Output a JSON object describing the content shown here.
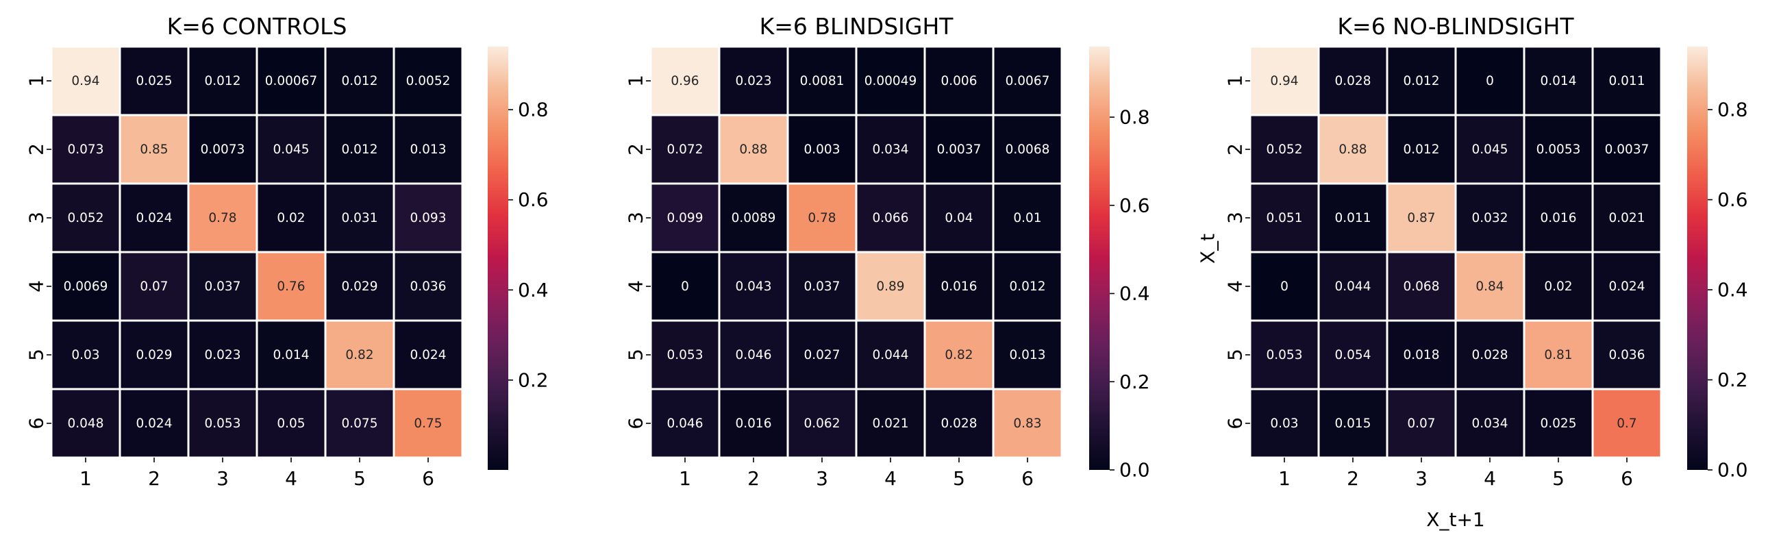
{
  "chart_data": [
    {
      "type": "heatmap",
      "title": "K=6 CONTROLS",
      "x_tick_labels": [
        "1",
        "2",
        "3",
        "4",
        "5",
        "6"
      ],
      "y_tick_labels": [
        "1",
        "2",
        "3",
        "4",
        "5",
        "6"
      ],
      "xlabel": "",
      "ylabel": "",
      "values": [
        [
          0.94,
          0.025,
          0.012,
          0.00067,
          0.012,
          0.0052
        ],
        [
          0.073,
          0.85,
          0.0073,
          0.045,
          0.012,
          0.013
        ],
        [
          0.052,
          0.024,
          0.78,
          0.02,
          0.031,
          0.093
        ],
        [
          0.0069,
          0.07,
          0.037,
          0.76,
          0.029,
          0.036
        ],
        [
          0.03,
          0.029,
          0.023,
          0.014,
          0.82,
          0.024
        ],
        [
          0.048,
          0.024,
          0.053,
          0.05,
          0.075,
          0.75
        ]
      ],
      "cell_labels": [
        [
          "0.94",
          "0.025",
          "0.012",
          "0.00067",
          "0.012",
          "0.0052"
        ],
        [
          "0.073",
          "0.85",
          "0.0073",
          "0.045",
          "0.012",
          "0.013"
        ],
        [
          "0.052",
          "0.024",
          "0.78",
          "0.02",
          "0.031",
          "0.093"
        ],
        [
          "0.0069",
          "0.07",
          "0.037",
          "0.76",
          "0.029",
          "0.036"
        ],
        [
          "0.03",
          "0.029",
          "0.023",
          "0.014",
          "0.82",
          "0.024"
        ],
        [
          "0.048",
          "0.024",
          "0.053",
          "0.05",
          "0.075",
          "0.75"
        ]
      ],
      "colorbar": {
        "range": [
          0.00067,
          0.94
        ],
        "ticks": [
          0.2,
          0.4,
          0.6,
          0.8
        ],
        "tick_labels": [
          "0.2",
          "0.4",
          "0.6",
          "0.8"
        ]
      }
    },
    {
      "type": "heatmap",
      "title": "K=6 BLINDSIGHT",
      "x_tick_labels": [
        "1",
        "2",
        "3",
        "4",
        "5",
        "6"
      ],
      "y_tick_labels": [
        "1",
        "2",
        "3",
        "4",
        "5",
        "6"
      ],
      "xlabel": "",
      "ylabel": "",
      "values": [
        [
          0.96,
          0.023,
          0.0081,
          0.00049,
          0.006,
          0.0067
        ],
        [
          0.072,
          0.88,
          0.003,
          0.034,
          0.0037,
          0.0068
        ],
        [
          0.099,
          0.0089,
          0.78,
          0.066,
          0.04,
          0.01
        ],
        [
          0,
          0.043,
          0.037,
          0.89,
          0.016,
          0.012
        ],
        [
          0.053,
          0.046,
          0.027,
          0.044,
          0.82,
          0.013
        ],
        [
          0.046,
          0.016,
          0.062,
          0.021,
          0.028,
          0.83
        ]
      ],
      "cell_labels": [
        [
          "0.96",
          "0.023",
          "0.0081",
          "0.00049",
          "0.006",
          "0.0067"
        ],
        [
          "0.072",
          "0.88",
          "0.003",
          "0.034",
          "0.0037",
          "0.0068"
        ],
        [
          "0.099",
          "0.0089",
          "0.78",
          "0.066",
          "0.04",
          "0.01"
        ],
        [
          "0",
          "0.043",
          "0.037",
          "0.89",
          "0.016",
          "0.012"
        ],
        [
          "0.053",
          "0.046",
          "0.027",
          "0.044",
          "0.82",
          "0.013"
        ],
        [
          "0.046",
          "0.016",
          "0.062",
          "0.021",
          "0.028",
          "0.83"
        ]
      ],
      "colorbar": {
        "range": [
          0,
          0.96
        ],
        "ticks": [
          0,
          0.2,
          0.4,
          0.6,
          0.8
        ],
        "tick_labels": [
          "0.0",
          "0.2",
          "0.4",
          "0.6",
          "0.8"
        ]
      }
    },
    {
      "type": "heatmap",
      "title": "K=6 NO-BLINDSIGHT",
      "x_tick_labels": [
        "1",
        "2",
        "3",
        "4",
        "5",
        "6"
      ],
      "y_tick_labels": [
        "1",
        "2",
        "3",
        "4",
        "5",
        "6"
      ],
      "xlabel": "X_t+1",
      "ylabel": "X_t",
      "values": [
        [
          0.94,
          0.028,
          0.012,
          0,
          0.014,
          0.011
        ],
        [
          0.052,
          0.88,
          0.012,
          0.045,
          0.0053,
          0.0037
        ],
        [
          0.051,
          0.011,
          0.87,
          0.032,
          0.016,
          0.021
        ],
        [
          0,
          0.044,
          0.068,
          0.84,
          0.02,
          0.024
        ],
        [
          0.053,
          0.054,
          0.018,
          0.028,
          0.81,
          0.036
        ],
        [
          0.03,
          0.015,
          0.07,
          0.034,
          0.025,
          0.7
        ]
      ],
      "cell_labels": [
        [
          "0.94",
          "0.028",
          "0.012",
          "0",
          "0.014",
          "0.011"
        ],
        [
          "0.052",
          "0.88",
          "0.012",
          "0.045",
          "0.0053",
          "0.0037"
        ],
        [
          "0.051",
          "0.011",
          "0.87",
          "0.032",
          "0.016",
          "0.021"
        ],
        [
          "0",
          "0.044",
          "0.068",
          "0.84",
          "0.02",
          "0.024"
        ],
        [
          "0.053",
          "0.054",
          "0.018",
          "0.028",
          "0.81",
          "0.036"
        ],
        [
          "0.03",
          "0.015",
          "0.07",
          "0.034",
          "0.025",
          "0.7"
        ]
      ],
      "colorbar": {
        "range": [
          0,
          0.94
        ],
        "ticks": [
          0,
          0.2,
          0.4,
          0.6,
          0.8
        ],
        "tick_labels": [
          "0.0",
          "0.2",
          "0.4",
          "0.6",
          "0.8"
        ]
      }
    }
  ],
  "colormap": "rocket",
  "cell_border_color": "#ffffff"
}
